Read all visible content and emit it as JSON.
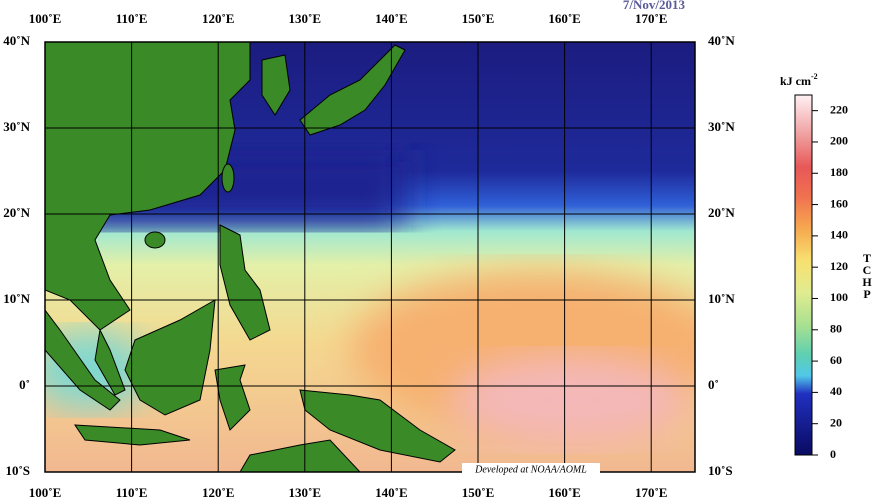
{
  "map": {
    "date": "7/Nov/2013",
    "credit": "Developed at NOAA/AOML",
    "longitudes": [
      {
        "value": 100,
        "label": "100˚E"
      },
      {
        "value": 110,
        "label": "110˚E"
      },
      {
        "value": 120,
        "label": "120˚E"
      },
      {
        "value": 130,
        "label": "130˚E"
      },
      {
        "value": 140,
        "label": "140˚E"
      },
      {
        "value": 150,
        "label": "150˚E"
      },
      {
        "value": 160,
        "label": "160˚E"
      },
      {
        "value": 170,
        "label": "170˚E"
      }
    ],
    "latitudes": [
      {
        "value": 40,
        "label": "40˚N"
      },
      {
        "value": 30,
        "label": "30˚N"
      },
      {
        "value": 20,
        "label": "20˚N"
      },
      {
        "value": 10,
        "label": "10˚N"
      },
      {
        "value": 0,
        "label": "0˚"
      },
      {
        "value": -10,
        "label": "10˚S"
      }
    ]
  },
  "colorbar": {
    "unit": "kJ cm",
    "unit_exponent": "-2",
    "label": "TCHP",
    "range": [
      0,
      230
    ],
    "ticks": [
      0,
      20,
      40,
      60,
      80,
      100,
      120,
      140,
      160,
      180,
      200,
      220
    ]
  }
}
